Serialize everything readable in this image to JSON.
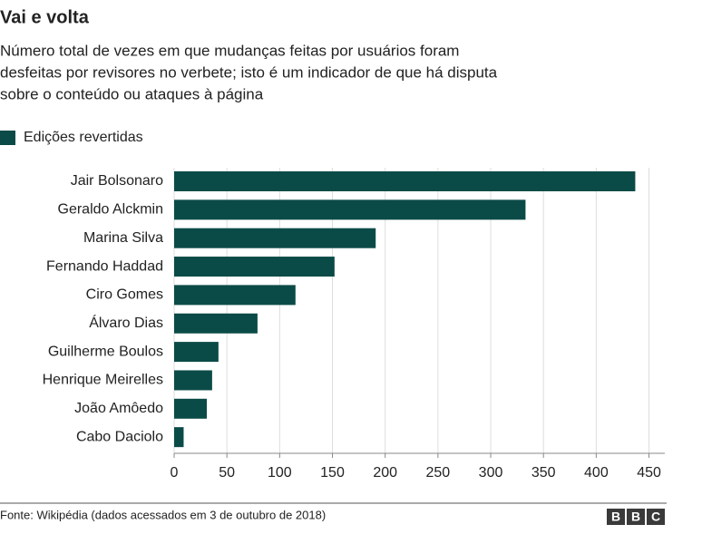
{
  "chart_data": {
    "type": "bar",
    "orientation": "horizontal",
    "title": "Vai e volta",
    "subtitle": [
      "Número total de vezes em que mudanças feitas por usuários foram",
      "desfeitas por revisores no verbete; isto é um indicador de que há disputa",
      "sobre o conteúdo ou ataques à página"
    ],
    "categories": [
      "Jair Bolsonaro",
      "Geraldo Alckmin",
      "Marina Silva",
      "Fernando Haddad",
      "Ciro Gomes",
      "Álvaro Dias",
      "Guilherme Boulos",
      "Henrique Meirelles",
      "João Amôedo",
      "Cabo Daciolo"
    ],
    "series": [
      {
        "name": "Edições revertidas",
        "color": "#0b4b47",
        "values": [
          437,
          333,
          191,
          152,
          115,
          79,
          42,
          36,
          31,
          9
        ]
      }
    ],
    "xlim": [
      0,
      465
    ],
    "xticks": [
      0,
      50,
      100,
      150,
      200,
      250,
      300,
      350,
      400,
      450
    ],
    "grid": true,
    "source": "Fonte: Wikipédia (dados acessados em 3 de outubro de 2018)",
    "logo": [
      "B",
      "B",
      "C"
    ]
  }
}
